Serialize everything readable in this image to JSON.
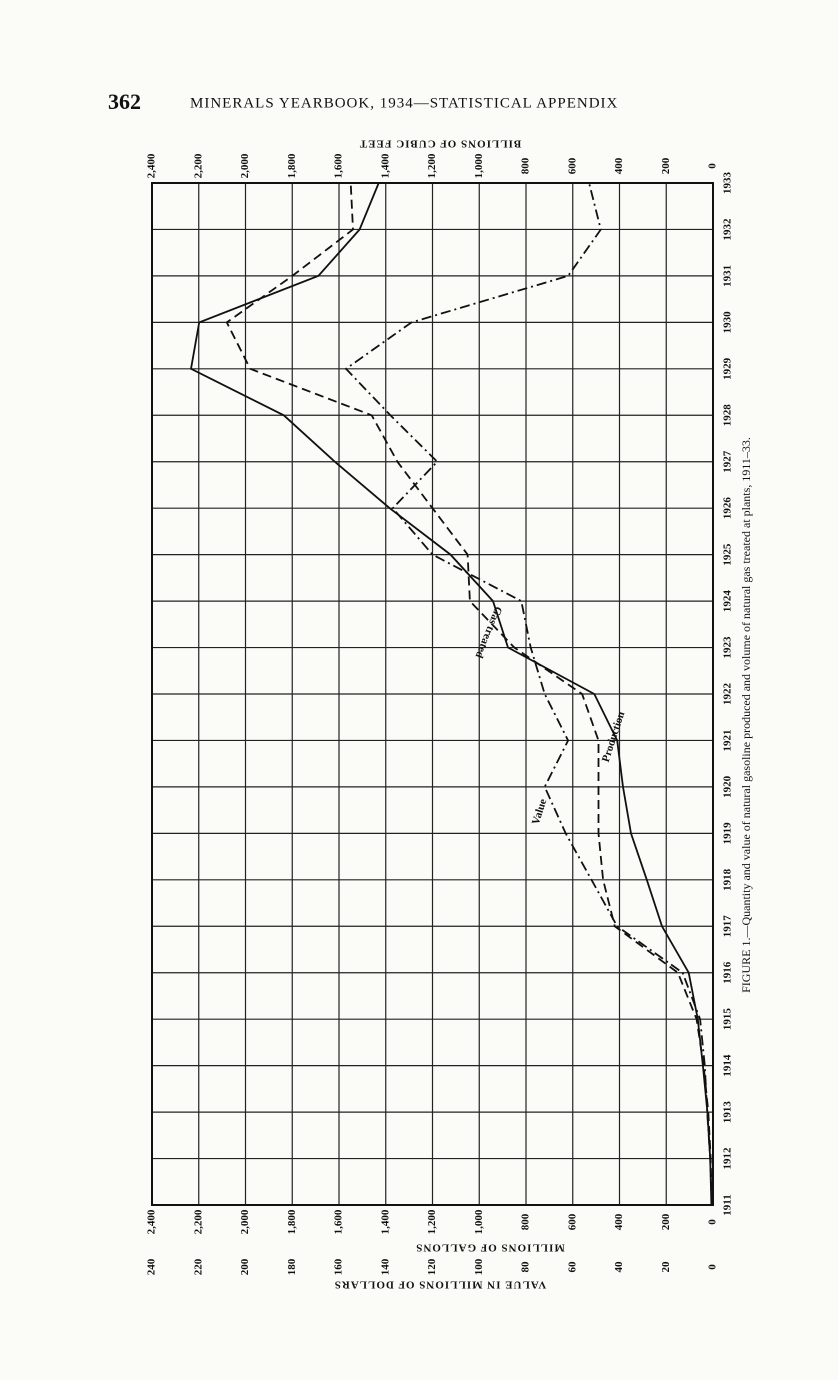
{
  "page": {
    "number": "362",
    "running_head": "MINERALS YEARBOOK, 1934—STATISTICAL APPENDIX"
  },
  "chart_data": {
    "type": "line",
    "caption": "FIGURE 1.—Quantity and value of natural gasoline produced and volume of natural gas treated at plants, 1911–33.",
    "top_axis_title": "BILLIONS OF CUBIC FEET",
    "y_axis_title": "MILLIONS OF GALLONS",
    "y2_axis_title": "VALUE IN MILLIONS OF DOLLARS",
    "x": [
      1911,
      1912,
      1913,
      1914,
      1915,
      1916,
      1917,
      1918,
      1919,
      1920,
      1921,
      1922,
      1923,
      1924,
      1925,
      1926,
      1927,
      1928,
      1929,
      1930,
      1931,
      1932,
      1933
    ],
    "xlim": [
      1911,
      1933
    ],
    "xticks": [
      1911,
      1912,
      1913,
      1914,
      1915,
      1916,
      1917,
      1918,
      1919,
      1920,
      1921,
      1922,
      1923,
      1924,
      1925,
      1926,
      1927,
      1928,
      1929,
      1930,
      1931,
      1932,
      1933
    ],
    "ylim": [
      0,
      2400
    ],
    "yticks": [
      0,
      200,
      400,
      600,
      800,
      {
        "value": 1000,
        "label": "1,000"
      },
      {
        "value": 1200,
        "label": "1,200"
      },
      {
        "value": 1400,
        "label": "1,400"
      },
      {
        "value": 1600,
        "label": "1,600"
      },
      {
        "value": 1800,
        "label": "1,800"
      },
      {
        "value": 2000,
        "label": "2,000"
      },
      {
        "value": 2200,
        "label": "2,200"
      },
      {
        "value": 2400,
        "label": "2,400"
      }
    ],
    "y2lim": [
      0,
      240
    ],
    "y2ticks": [
      0,
      20,
      40,
      60,
      80,
      100,
      120,
      140,
      160,
      180,
      200,
      220,
      240
    ],
    "grid": true,
    "series": [
      {
        "name": "Production",
        "color": "#111111",
        "dash": "solid",
        "values": [
          7,
          12,
          24,
          43,
          65,
          104,
          218,
          283,
          351,
          385,
          410,
          508,
          877,
          941,
          1123,
          1383,
          1618,
          1836,
          2233,
          2198,
          1688,
          1512,
          1430
        ]
      },
      {
        "name": "Gas treated",
        "color": "#111111",
        "dash": "dashed",
        "values": [
          5,
          10,
          20,
          40,
          70,
          150,
          420,
          470,
          490,
          490,
          490,
          560,
          850,
          1040,
          1050,
          1200,
          1350,
          1460,
          1980,
          2080,
          1800,
          1540,
          1550
        ]
      },
      {
        "name": "Value",
        "color": "#111111",
        "dash": "dashdot",
        "axis": "y2",
        "values": [
          0.5,
          1.2,
          2.5,
          3.5,
          5.5,
          13,
          41,
          52,
          63,
          72,
          62,
          72,
          78,
          82,
          120,
          137,
          118,
          138,
          157,
          129,
          62,
          48,
          53
        ]
      }
    ]
  }
}
